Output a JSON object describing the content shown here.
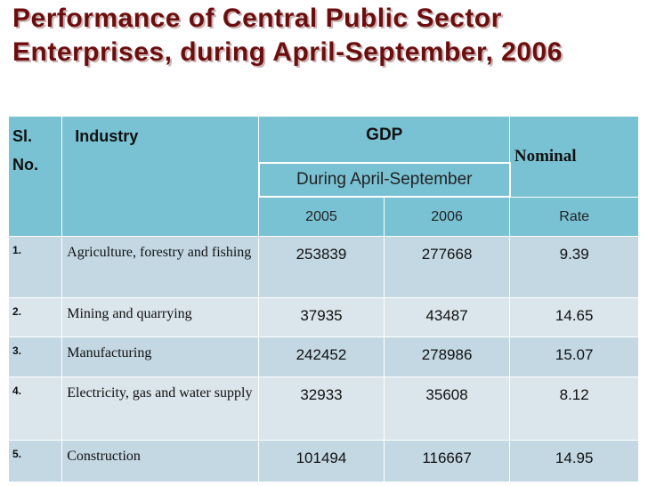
{
  "title": "Performance of Central Public Sector Enterprises, during April-September, 2006",
  "headers": {
    "sl_line1": "Sl.",
    "sl_line2": "No.",
    "industry": "Industry",
    "gdp": "GDP",
    "during": "During April-September",
    "nominal": "Nominal",
    "year1": "2005",
    "year2": "2006",
    "rate": "Rate"
  },
  "rows": [
    {
      "sl": "1.",
      "industry": "Agriculture, forestry and fishing",
      "y2005": "253839",
      "y2006": "277668",
      "rate": "9.39"
    },
    {
      "sl": "2.",
      "industry": "Mining and quarrying",
      "y2005": "37935",
      "y2006": "43487",
      "rate": "14.65"
    },
    {
      "sl": "3.",
      "industry": "Manufacturing",
      "y2005": "242452",
      "y2006": "278986",
      "rate": "15.07"
    },
    {
      "sl": "4.",
      "industry": "Electricity, gas and water supply",
      "y2005": "32933",
      "y2006": "35608",
      "rate": "8.12"
    },
    {
      "sl": "5.",
      "industry": "Construction",
      "y2005": "101494",
      "y2006": "116667",
      "rate": "14.95"
    }
  ]
}
